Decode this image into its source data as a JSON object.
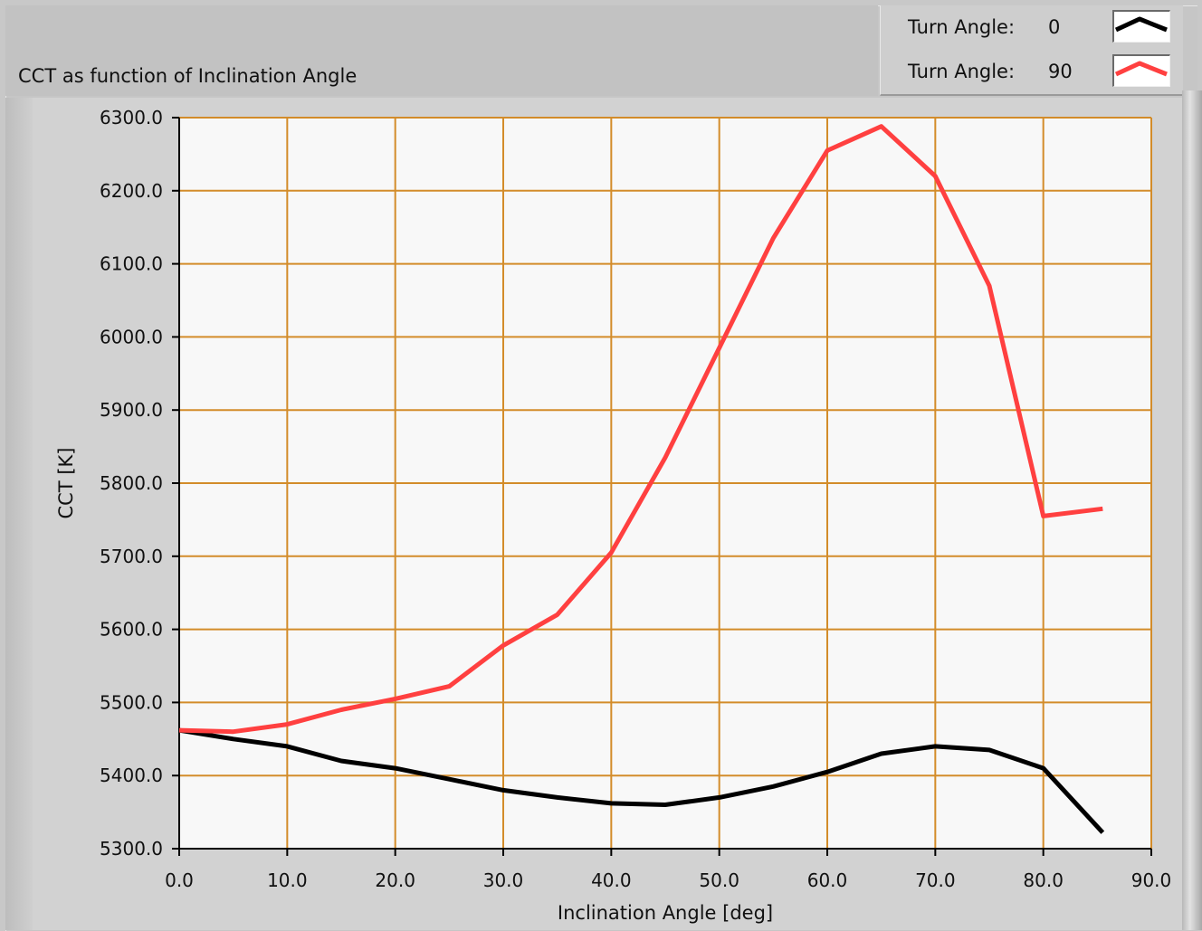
{
  "chart_data": {
    "type": "line",
    "title": "CCT as function of Inclination Angle",
    "xlabel": "Inclination Angle [deg]",
    "ylabel": "CCT [K]",
    "xlim": [
      0,
      90
    ],
    "ylim": [
      5300,
      6300
    ],
    "xticks": [
      "0.0",
      "10.0",
      "20.0",
      "30.0",
      "40.0",
      "50.0",
      "60.0",
      "70.0",
      "80.0",
      "90.0"
    ],
    "yticks": [
      "5300.0",
      "5400.0",
      "5500.0",
      "5600.0",
      "5700.0",
      "5800.0",
      "5900.0",
      "6000.0",
      "6100.0",
      "6200.0",
      "6300.0"
    ],
    "grid": true,
    "legend_position": "top-right",
    "series": [
      {
        "name": "Turn Angle: 0",
        "legend_label": "Turn Angle:",
        "legend_value": "0",
        "color": "#000000",
        "x": [
          0,
          5,
          10,
          15,
          20,
          25,
          30,
          35,
          40,
          45,
          50,
          55,
          60,
          65,
          70,
          75,
          80,
          85.5
        ],
        "y": [
          5462,
          5450,
          5440,
          5420,
          5410,
          5395,
          5380,
          5370,
          5362,
          5360,
          5370,
          5385,
          5405,
          5430,
          5440,
          5435,
          5410,
          5322
        ]
      },
      {
        "name": "Turn Angle: 90",
        "legend_label": "Turn Angle:",
        "legend_value": "90",
        "color": "#ff4040",
        "x": [
          0,
          5,
          10,
          15,
          20,
          25,
          30,
          35,
          40,
          45,
          50,
          55,
          60,
          65,
          70,
          75,
          80,
          85.5
        ],
        "y": [
          5462,
          5460,
          5470,
          5490,
          5505,
          5522,
          5578,
          5620,
          5705,
          5835,
          5985,
          6135,
          6255,
          6288,
          6220,
          6070,
          5755,
          5765
        ]
      }
    ]
  },
  "style": {
    "plot_background": "#f8f8f8",
    "grid_color": "#d38c2a"
  }
}
